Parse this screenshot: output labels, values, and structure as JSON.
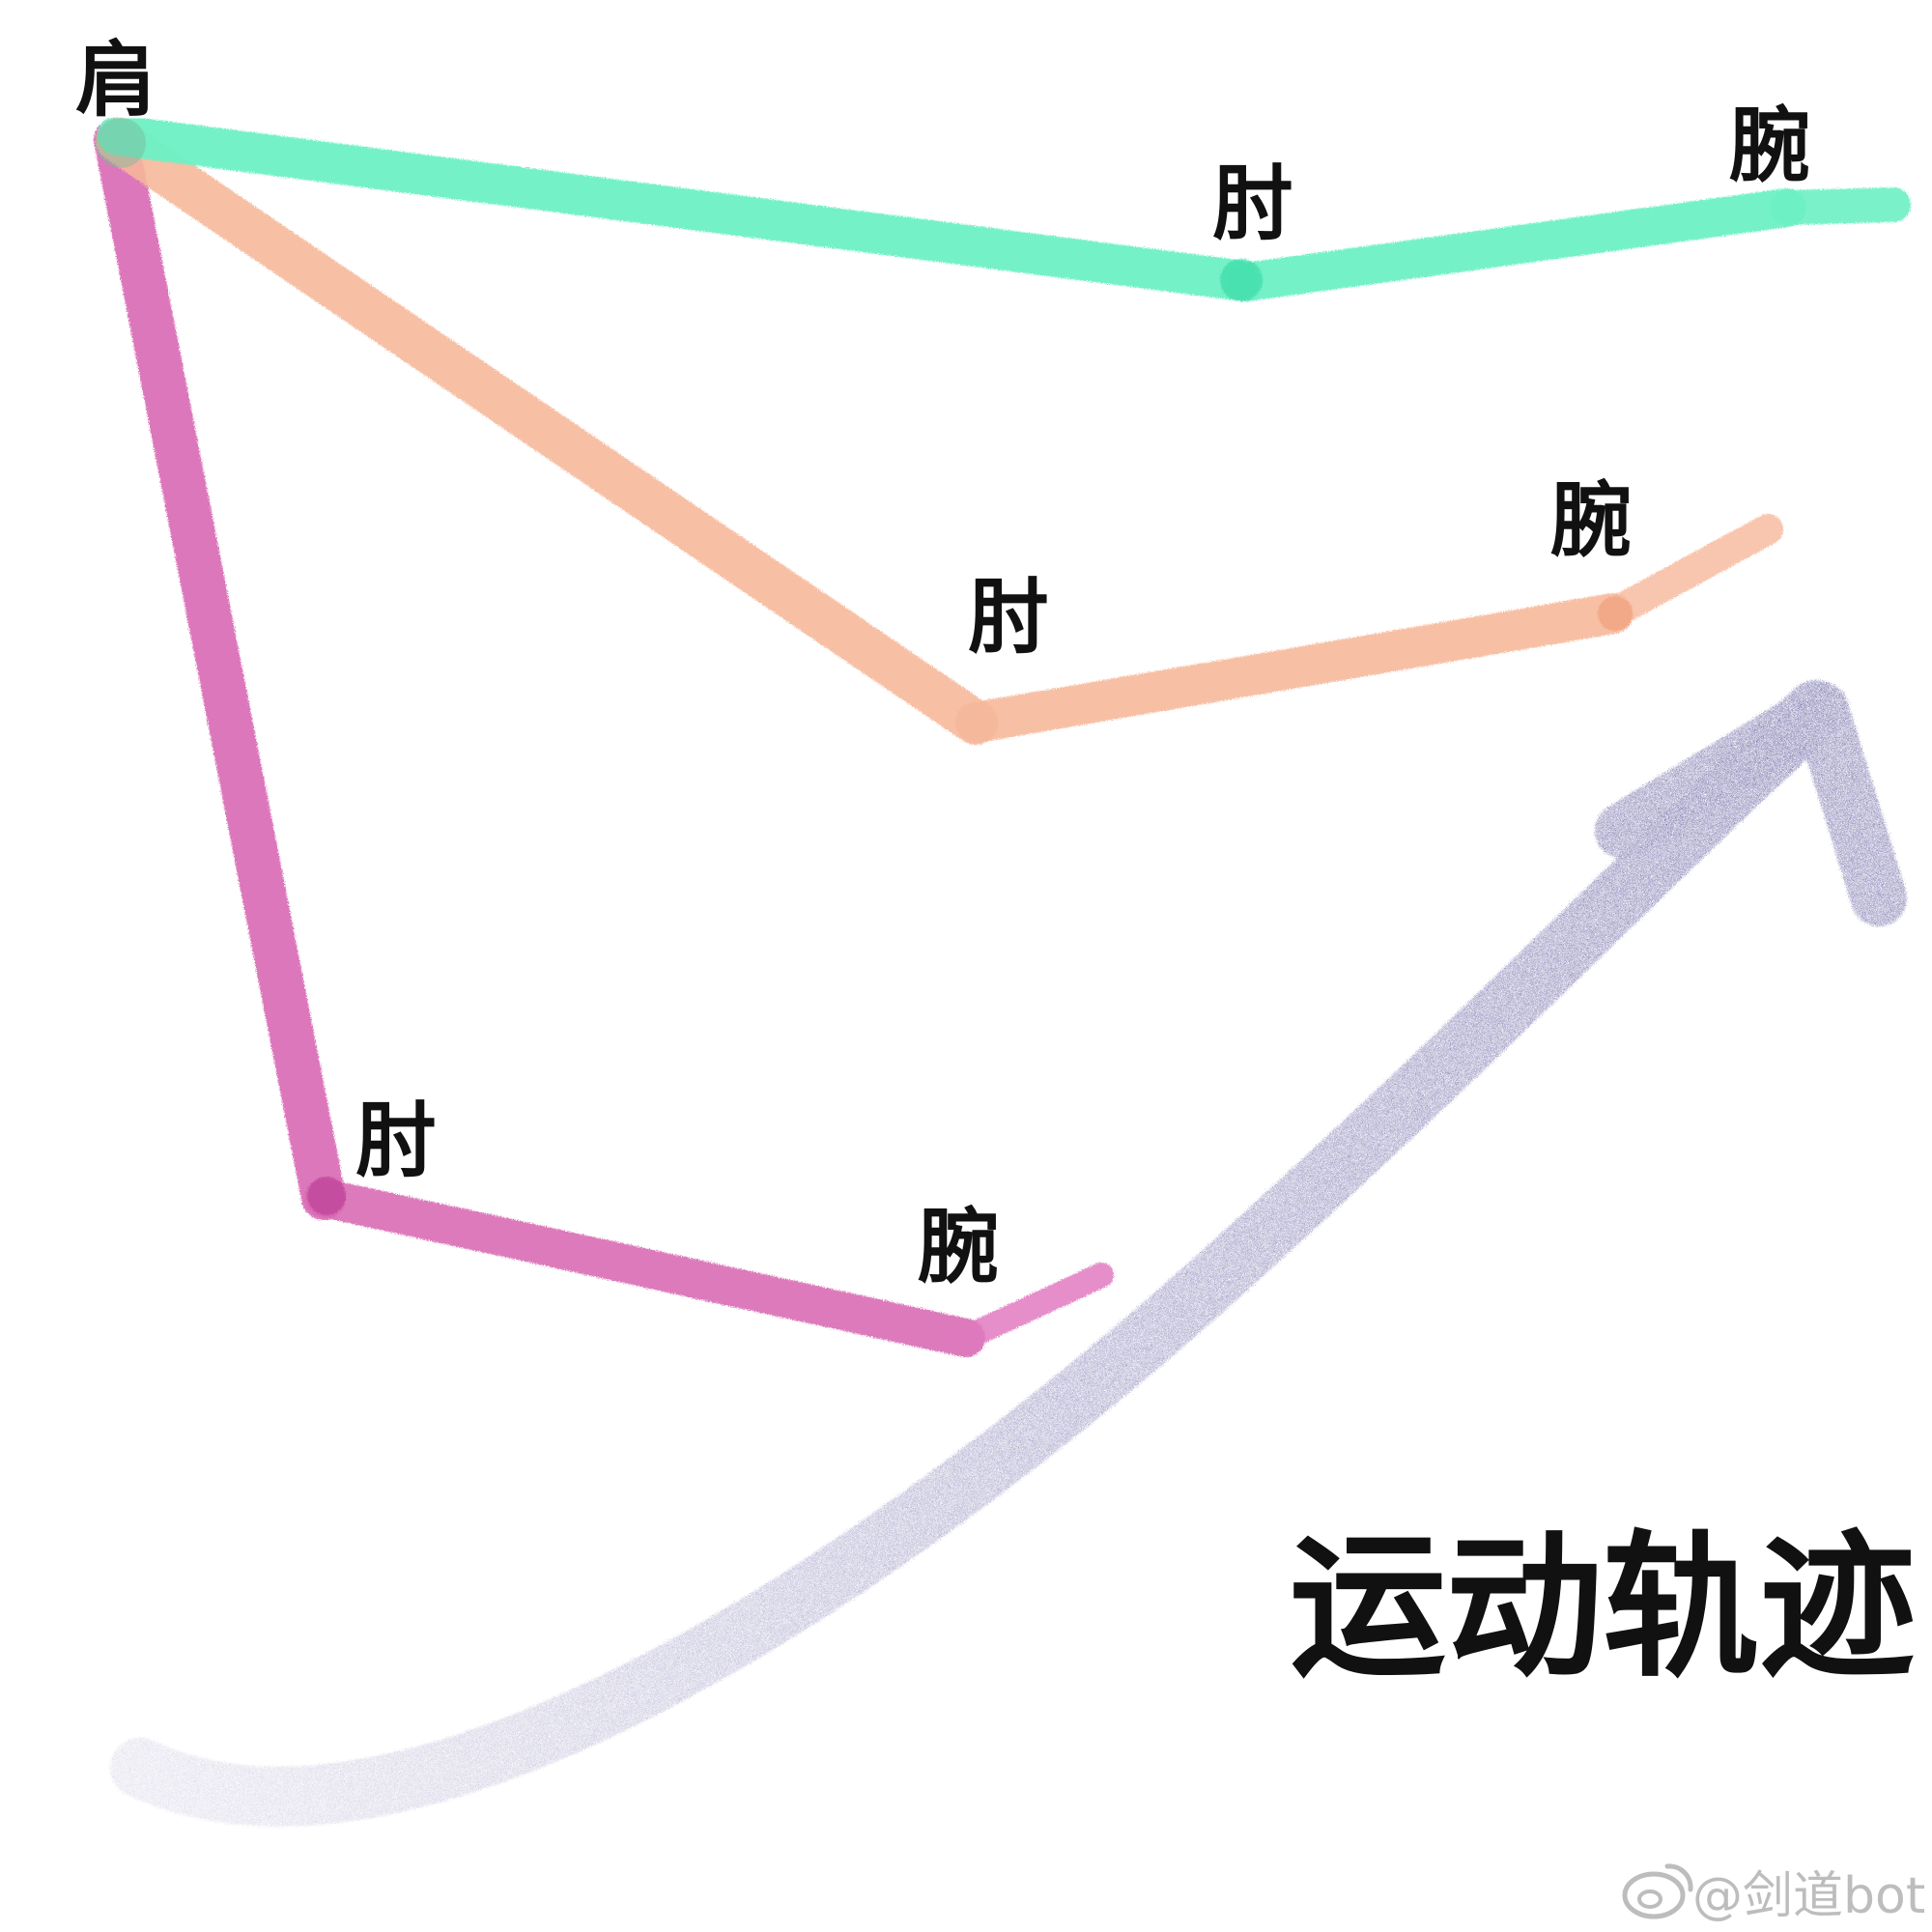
{
  "labels": {
    "shoulder": "肩",
    "elbow": "肘",
    "wrist": "腕"
  },
  "title": "运动轨迹",
  "watermark": "@剑道bot",
  "colors": {
    "arm_top": "#6df0c4",
    "arm_middle": "#f6b89a",
    "arm_bottom": "#d86bb4",
    "trajectory": "#8a86b8",
    "text": "#111111",
    "watermark": "#bdbdbd"
  },
  "arms": [
    {
      "name": "arm-top"
    },
    {
      "name": "arm-middle"
    },
    {
      "name": "arm-bottom"
    }
  ],
  "icons": {
    "watermark": "weibo-icon"
  }
}
